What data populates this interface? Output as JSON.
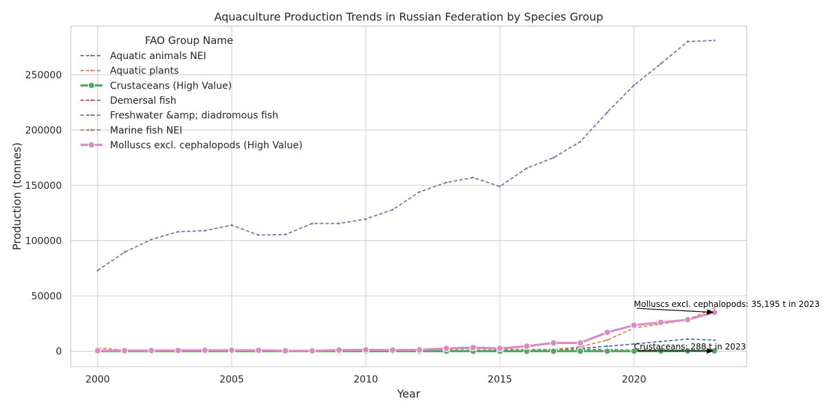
{
  "chart_data": {
    "type": "line",
    "title": "Aquaculture Production Trends in Russian Federation by Species Group",
    "xlabel": "Year",
    "ylabel": "Production (tonnes)",
    "xlim": [
      1999,
      2024.2
    ],
    "ylim": [
      -14000,
      294000
    ],
    "xticks": [
      2000,
      2005,
      2010,
      2015,
      2020
    ],
    "yticks": [
      0,
      50000,
      100000,
      150000,
      200000,
      250000
    ],
    "grid": true,
    "legend": {
      "title": "FAO Group Name",
      "placement": "top-left"
    },
    "x": [
      2000,
      2001,
      2002,
      2003,
      2004,
      2005,
      2006,
      2007,
      2008,
      2009,
      2010,
      2011,
      2012,
      2013,
      2014,
      2015,
      2016,
      2017,
      2018,
      2019,
      2020,
      2021,
      2022,
      2023
    ],
    "series": [
      {
        "name": "Aquatic animals NEI",
        "color": "#4c72b0",
        "highlight": false,
        "values": [
          100,
          100,
          100,
          100,
          100,
          100,
          100,
          100,
          100,
          200,
          200,
          300,
          400,
          500,
          700,
          900,
          1200,
          1600,
          2500,
          4500,
          6500,
          8800,
          11000,
          10000
        ]
      },
      {
        "name": "Aquatic plants",
        "color": "#dd8452",
        "highlight": false,
        "values": [
          3000,
          800,
          600,
          500,
          400,
          400,
          400,
          300,
          300,
          300,
          500,
          800,
          1200,
          1500,
          2500,
          2000,
          1500,
          1500,
          4000,
          10000,
          21000,
          24500,
          28500,
          39000
        ]
      },
      {
        "name": "Crustaceans (High Value)",
        "color": "#55a868",
        "highlight": true,
        "values": [
          0,
          0,
          0,
          0,
          0,
          0,
          0,
          0,
          0,
          0,
          0,
          0,
          0,
          0,
          0,
          0,
          0,
          0,
          0,
          0,
          0,
          100,
          200,
          288
        ]
      },
      {
        "name": "Demersal fish",
        "color": "#c44e52",
        "highlight": false,
        "values": [
          0,
          0,
          0,
          0,
          0,
          0,
          0,
          0,
          0,
          0,
          0,
          0,
          0,
          0,
          0,
          0,
          0,
          0,
          0,
          0,
          0,
          0,
          0,
          0
        ]
      },
      {
        "name": "Freshwater &amp; diadromous fish",
        "color": "#8172b3",
        "highlight": false,
        "values": [
          73000,
          89500,
          101000,
          108000,
          109000,
          114000,
          105000,
          105500,
          115500,
          115500,
          119500,
          128000,
          144000,
          152500,
          157000,
          149000,
          165500,
          175000,
          189500,
          216000,
          240500,
          260000,
          280000,
          281000
        ]
      },
      {
        "name": "Marine fish NEI",
        "color": "#937860",
        "highlight": false,
        "values": [
          0,
          0,
          0,
          0,
          0,
          0,
          0,
          0,
          0,
          0,
          100,
          100,
          200,
          300,
          400,
          600,
          800,
          1200,
          1700,
          1500,
          900,
          800,
          700,
          500
        ]
      },
      {
        "name": "Molluscs excl. cephalopods (High Value)",
        "color": "#da8bc3",
        "highlight": true,
        "values": [
          400,
          500,
          600,
          700,
          800,
          900,
          800,
          300,
          300,
          1000,
          1200,
          1000,
          1200,
          2500,
          3300,
          2500,
          4500,
          7500,
          7500,
          17000,
          23500,
          26000,
          28500,
          35195
        ]
      }
    ],
    "annotations": [
      {
        "text": "Molluscs excl. cephalopods: 35,195 t in 2023",
        "x": 2023,
        "y": 35195,
        "text_x": 2020,
        "text_y": 40000
      },
      {
        "text": "Crustaceans: 288 t in 2023",
        "x": 2023,
        "y": 288,
        "text_x": 2020,
        "text_y": 1600
      }
    ]
  }
}
